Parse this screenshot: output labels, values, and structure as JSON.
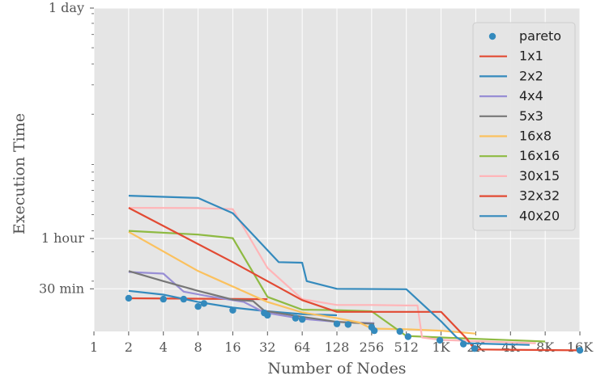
{
  "chart_data": {
    "type": "line",
    "xlabel": "Number of Nodes",
    "ylabel": "Execution Time",
    "xscale": "log2",
    "yscale": "log",
    "xlim": [
      1,
      16384
    ],
    "ylim_seconds": [
      1000,
      86400
    ],
    "grid": true,
    "legend_position": "top-right",
    "x_ticks": [
      {
        "value": 1,
        "label": "1"
      },
      {
        "value": 2,
        "label": "2"
      },
      {
        "value": 4,
        "label": "4"
      },
      {
        "value": 8,
        "label": "8"
      },
      {
        "value": 16,
        "label": "16"
      },
      {
        "value": 32,
        "label": "32"
      },
      {
        "value": 64,
        "label": "64"
      },
      {
        "value": 128,
        "label": "128"
      },
      {
        "value": 256,
        "label": "256"
      },
      {
        "value": 512,
        "label": "512"
      },
      {
        "value": 1024,
        "label": "1K"
      },
      {
        "value": 2048,
        "label": "2K"
      },
      {
        "value": 4096,
        "label": "4K"
      },
      {
        "value": 8192,
        "label": "8K"
      },
      {
        "value": 16384,
        "label": "16K"
      }
    ],
    "y_ticks": [
      {
        "value": 86400,
        "label": "1 day"
      },
      {
        "value": 3600,
        "label": "1 hour"
      },
      {
        "value": 1800,
        "label": "30 min"
      }
    ],
    "pareto": {
      "name": "pareto",
      "color": "#348ABD",
      "points": [
        [
          2,
          1580
        ],
        [
          4,
          1560
        ],
        [
          6,
          1560
        ],
        [
          8,
          1410
        ],
        [
          9,
          1470
        ],
        [
          16,
          1340
        ],
        [
          30,
          1290
        ],
        [
          32,
          1250
        ],
        [
          56,
          1200
        ],
        [
          64,
          1180
        ],
        [
          128,
          1110
        ],
        [
          160,
          1100
        ],
        [
          256,
          1060
        ],
        [
          270,
          1010
        ],
        [
          450,
          1000
        ],
        [
          530,
          930
        ],
        [
          1000,
          885
        ],
        [
          1600,
          840
        ],
        [
          2000,
          790
        ],
        [
          16384,
          770
        ]
      ]
    },
    "series": [
      {
        "name": "1x1",
        "color": "#E24A33",
        "points": [
          [
            2,
            1580
          ],
          [
            32,
            1560
          ]
        ]
      },
      {
        "name": "2x2",
        "color": "#348ABD",
        "points": [
          [
            2,
            1750
          ],
          [
            4,
            1660
          ],
          [
            8,
            1500
          ],
          [
            16,
            1390
          ],
          [
            32,
            1320
          ],
          [
            64,
            1270
          ],
          [
            128,
            1250
          ]
        ]
      },
      {
        "name": "4x4",
        "color": "#988ED5",
        "points": [
          [
            2,
            2270
          ],
          [
            4,
            2220
          ],
          [
            6,
            1730
          ],
          [
            10,
            1620
          ],
          [
            20,
            1500
          ],
          [
            30,
            1300
          ],
          [
            64,
            1190
          ],
          [
            128,
            1140
          ],
          [
            270,
            1120
          ]
        ]
      },
      {
        "name": "5x3",
        "color": "#777777",
        "points": [
          [
            2,
            2300
          ],
          [
            4,
            2000
          ],
          [
            8,
            1750
          ],
          [
            16,
            1550
          ],
          [
            24,
            1520
          ],
          [
            30,
            1330
          ],
          [
            56,
            1240
          ],
          [
            128,
            1140
          ],
          [
            270,
            1110
          ]
        ]
      },
      {
        "name": "16x8",
        "color": "#FBC15E",
        "points": [
          [
            2,
            3950
          ],
          [
            8,
            2300
          ],
          [
            32,
            1500
          ],
          [
            64,
            1300
          ],
          [
            128,
            1200
          ],
          [
            200,
            1130
          ],
          [
            256,
            1040
          ],
          [
            512,
            1030
          ],
          [
            1024,
            1010
          ],
          [
            2048,
            970
          ]
        ]
      },
      {
        "name": "16x16",
        "color": "#8EBA42",
        "points": [
          [
            2,
            4000
          ],
          [
            8,
            3800
          ],
          [
            16,
            3620
          ],
          [
            32,
            1610
          ],
          [
            64,
            1350
          ],
          [
            128,
            1340
          ],
          [
            256,
            1320
          ],
          [
            512,
            940
          ],
          [
            1024,
            920
          ],
          [
            8192,
            870
          ]
        ]
      },
      {
        "name": "30x15",
        "color": "#FFB5B8",
        "points": [
          [
            2,
            5500
          ],
          [
            8,
            5480
          ],
          [
            16,
            5400
          ],
          [
            32,
            2400
          ],
          [
            64,
            1560
          ],
          [
            128,
            1440
          ],
          [
            256,
            1440
          ],
          [
            512,
            1430
          ],
          [
            640,
            1430
          ],
          [
            700,
            920
          ],
          [
            1024,
            890
          ],
          [
            6800,
            850
          ]
        ]
      },
      {
        "name": "32x32",
        "color": "#E24A33",
        "points": [
          [
            2,
            5500
          ],
          [
            16,
            2600
          ],
          [
            64,
            1540
          ],
          [
            128,
            1310
          ],
          [
            1024,
            1310
          ],
          [
            1700,
            910
          ],
          [
            2000,
            780
          ],
          [
            16384,
            770
          ]
        ]
      },
      {
        "name": "40x20",
        "color": "#348ABD",
        "points": [
          [
            2,
            6500
          ],
          [
            8,
            6300
          ],
          [
            16,
            5100
          ],
          [
            40,
            2600
          ],
          [
            64,
            2580
          ],
          [
            70,
            2000
          ],
          [
            128,
            1800
          ],
          [
            512,
            1790
          ],
          [
            1024,
            1150
          ],
          [
            1400,
            920
          ],
          [
            1700,
            850
          ],
          [
            6000,
            830
          ]
        ]
      }
    ]
  }
}
